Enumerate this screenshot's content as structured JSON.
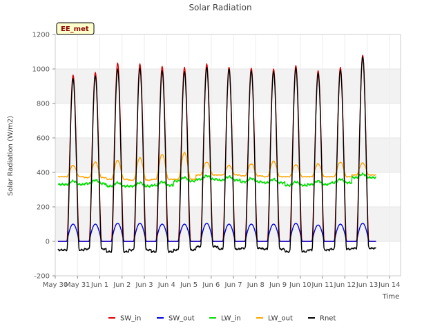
{
  "chart_data": {
    "type": "line",
    "title": "Solar Radiation",
    "xlabel": "Time",
    "ylabel": "Solar Radiation (W/m2)",
    "badge": "EE_met",
    "ylim": [
      -200,
      1200
    ],
    "yticks": [
      -200,
      0,
      200,
      400,
      600,
      800,
      1000,
      1200
    ],
    "xlim": [
      0,
      15.5
    ],
    "xticks": [
      {
        "pos": 0,
        "label": "May 30"
      },
      {
        "pos": 1,
        "label": "May 31"
      },
      {
        "pos": 2,
        "label": "Jun 1"
      },
      {
        "pos": 3,
        "label": "Jun 2"
      },
      {
        "pos": 4,
        "label": "Jun 3"
      },
      {
        "pos": 5,
        "label": "Jun 4"
      },
      {
        "pos": 6,
        "label": "Jun 5"
      },
      {
        "pos": 7,
        "label": "Jun 6"
      },
      {
        "pos": 8,
        "label": "Jun 7"
      },
      {
        "pos": 9,
        "label": "Jun 8"
      },
      {
        "pos": 10,
        "label": "Jun 9"
      },
      {
        "pos": 11,
        "label": "Jun 10"
      },
      {
        "pos": 12,
        "label": "Jun 11"
      },
      {
        "pos": 13,
        "label": "Jun 12"
      },
      {
        "pos": 14,
        "label": "Jun 13"
      },
      {
        "pos": 15,
        "label": "Jun 14"
      }
    ],
    "grid": true,
    "legend_position": "bottom-center",
    "days": [
      {
        "day": 0.8,
        "sw_in_peak": 965,
        "sw_out_peak": 100,
        "lw_in": 330,
        "lw_out_night": 375,
        "lw_out_peak": 440,
        "rnet_peak": 945,
        "rnet_night": -50
      },
      {
        "day": 1.8,
        "sw_in_peak": 980,
        "sw_out_peak": 100,
        "lw_in": 335,
        "lw_out_night": 370,
        "lw_out_peak": 460,
        "rnet_peak": 960,
        "rnet_night": -45
      },
      {
        "day": 2.8,
        "sw_in_peak": 1035,
        "sw_out_peak": 105,
        "lw_in": 320,
        "lw_out_night": 360,
        "lw_out_peak": 470,
        "rnet_peak": 1000,
        "rnet_night": -60
      },
      {
        "day": 3.8,
        "sw_in_peak": 1030,
        "sw_out_peak": 105,
        "lw_in": 320,
        "lw_out_night": 355,
        "lw_out_peak": 485,
        "rnet_peak": 1005,
        "rnet_night": -50
      },
      {
        "day": 4.8,
        "sw_in_peak": 1015,
        "sw_out_peak": 100,
        "lw_in": 325,
        "lw_out_night": 360,
        "lw_out_peak": 505,
        "rnet_peak": 990,
        "rnet_night": -60
      },
      {
        "day": 5.8,
        "sw_in_peak": 1010,
        "sw_out_peak": 100,
        "lw_in": 350,
        "lw_out_night": 360,
        "lw_out_peak": 515,
        "rnet_peak": 985,
        "rnet_night": -50
      },
      {
        "day": 6.8,
        "sw_in_peak": 1030,
        "sw_out_peak": 105,
        "lw_in": 360,
        "lw_out_night": 385,
        "lw_out_peak": 460,
        "rnet_peak": 1010,
        "rnet_night": -30
      },
      {
        "day": 7.8,
        "sw_in_peak": 1010,
        "sw_out_peak": 100,
        "lw_in": 355,
        "lw_out_night": 385,
        "lw_out_peak": 440,
        "rnet_peak": 1000,
        "rnet_night": -45
      },
      {
        "day": 8.8,
        "sw_in_peak": 1005,
        "sw_out_peak": 100,
        "lw_in": 345,
        "lw_out_night": 380,
        "lw_out_peak": 450,
        "rnet_peak": 990,
        "rnet_night": -40
      },
      {
        "day": 9.8,
        "sw_in_peak": 1000,
        "sw_out_peak": 100,
        "lw_in": 340,
        "lw_out_night": 375,
        "lw_out_peak": 465,
        "rnet_peak": 985,
        "rnet_night": -45
      },
      {
        "day": 10.8,
        "sw_in_peak": 1020,
        "sw_out_peak": 105,
        "lw_in": 325,
        "lw_out_night": 375,
        "lw_out_peak": 445,
        "rnet_peak": 1005,
        "rnet_night": -60
      },
      {
        "day": 11.8,
        "sw_in_peak": 990,
        "sw_out_peak": 95,
        "lw_in": 330,
        "lw_out_night": 375,
        "lw_out_peak": 450,
        "rnet_peak": 975,
        "rnet_night": -50
      },
      {
        "day": 12.8,
        "sw_in_peak": 1010,
        "sw_out_peak": 100,
        "lw_in": 340,
        "lw_out_night": 375,
        "lw_out_peak": 460,
        "rnet_peak": 995,
        "rnet_night": -45
      },
      {
        "day": 13.8,
        "sw_in_peak": 1080,
        "sw_out_peak": 105,
        "lw_in": 370,
        "lw_out_night": 385,
        "lw_out_peak": 455,
        "rnet_peak": 1070,
        "rnet_night": -40
      }
    ],
    "series": [
      {
        "key": "sw_in",
        "name": "SW_in",
        "color": "#dd0000"
      },
      {
        "key": "sw_out",
        "name": "SW_out",
        "color": "#0000dd"
      },
      {
        "key": "lw_in",
        "name": "LW_in",
        "color": "#00dd00"
      },
      {
        "key": "lw_out",
        "name": "LW_out",
        "color": "#ffa500"
      },
      {
        "key": "rnet",
        "name": "Rnet",
        "color": "#000000"
      }
    ]
  }
}
